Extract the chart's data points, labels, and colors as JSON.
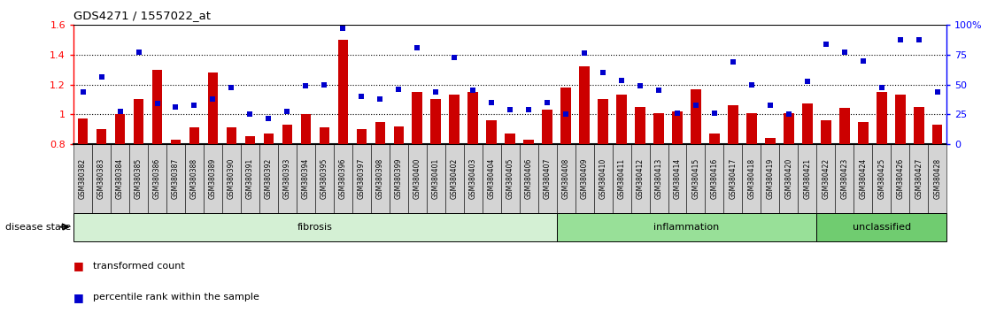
{
  "title": "GDS4271 / 1557022_at",
  "samples": [
    "GSM380382",
    "GSM380383",
    "GSM380384",
    "GSM380385",
    "GSM380386",
    "GSM380387",
    "GSM380388",
    "GSM380389",
    "GSM380390",
    "GSM380391",
    "GSM380392",
    "GSM380393",
    "GSM380394",
    "GSM380395",
    "GSM380396",
    "GSM380397",
    "GSM380398",
    "GSM380399",
    "GSM380400",
    "GSM380401",
    "GSM380402",
    "GSM380403",
    "GSM380404",
    "GSM380405",
    "GSM380406",
    "GSM380407",
    "GSM380408",
    "GSM380409",
    "GSM380410",
    "GSM380411",
    "GSM380412",
    "GSM380413",
    "GSM380414",
    "GSM380415",
    "GSM380416",
    "GSM380417",
    "GSM380418",
    "GSM380419",
    "GSM380420",
    "GSM380421",
    "GSM380422",
    "GSM380423",
    "GSM380424",
    "GSM380425",
    "GSM380426",
    "GSM380427",
    "GSM380428"
  ],
  "bar_values": [
    0.97,
    0.9,
    1.0,
    1.1,
    1.3,
    0.83,
    0.91,
    1.28,
    0.91,
    0.85,
    0.87,
    0.93,
    1.0,
    0.91,
    1.5,
    0.9,
    0.95,
    0.92,
    1.15,
    1.1,
    1.13,
    1.15,
    0.96,
    0.87,
    0.83,
    1.03,
    1.18,
    1.32,
    1.1,
    1.13,
    1.05,
    1.01,
    1.02,
    1.17,
    0.87,
    1.06,
    1.01,
    0.84,
    1.01,
    1.07,
    0.96,
    1.04,
    0.95,
    1.15,
    1.13,
    1.05,
    0.93
  ],
  "dot_values": [
    1.15,
    1.25,
    1.02,
    1.42,
    1.07,
    1.05,
    1.06,
    1.1,
    1.18,
    1.0,
    0.97,
    1.02,
    1.19,
    1.2,
    1.58,
    1.12,
    1.1,
    1.17,
    1.45,
    1.15,
    1.38,
    1.16,
    1.08,
    1.03,
    1.03,
    1.08,
    1.0,
    1.41,
    1.28,
    1.23,
    1.19,
    1.16,
    1.01,
    1.06,
    1.01,
    1.35,
    1.2,
    1.06,
    1.0,
    1.22,
    1.47,
    1.42,
    1.36,
    1.18,
    1.5,
    1.5,
    1.15
  ],
  "groups": [
    {
      "label": "fibrosis",
      "start": 0,
      "end": 26,
      "color": "#d4f0d4"
    },
    {
      "label": "inflammation",
      "start": 26,
      "end": 40,
      "color": "#98e098"
    },
    {
      "label": "unclassified",
      "start": 40,
      "end": 47,
      "color": "#70cc70"
    }
  ],
  "bar_color": "#cc0000",
  "dot_color": "#0000cc",
  "ylim_left": [
    0.8,
    1.6
  ],
  "ylim_right": [
    0,
    100
  ],
  "yticks_left": [
    0.8,
    1.0,
    1.2,
    1.4,
    1.6
  ],
  "ytick_labels_left": [
    "0.8",
    "1",
    "1.2",
    "1.4",
    "1.6"
  ],
  "yticks_right": [
    0,
    25,
    50,
    75,
    100
  ],
  "ytick_labels_right": [
    "0",
    "25",
    "50",
    "75",
    "100%"
  ],
  "hlines": [
    1.0,
    1.2,
    1.4
  ],
  "disease_state_label": "disease state",
  "legend_bar": "transformed count",
  "legend_dot": "percentile rank within the sample",
  "plot_bg_color": "#ffffff",
  "xlabel_bg_color": "#d8d8d8",
  "top_border_color": "#000000"
}
